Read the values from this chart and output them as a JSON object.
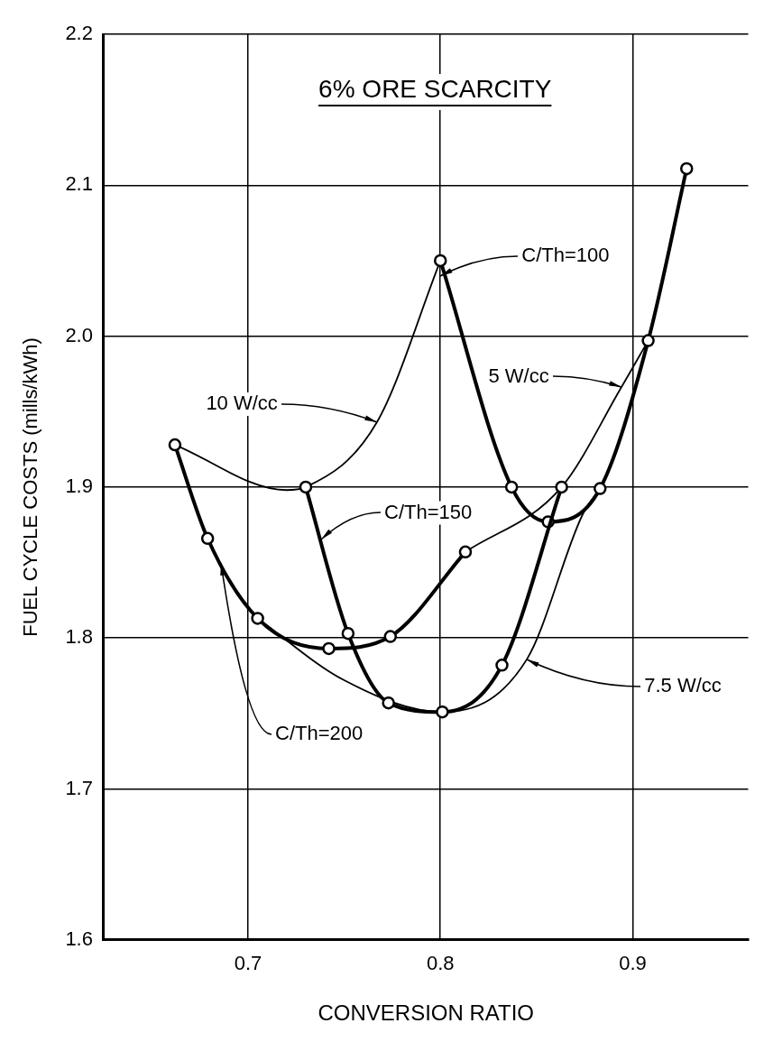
{
  "chart_data": {
    "type": "line",
    "title": "6% ORE SCARCITY",
    "xlabel": "CONVERSION RATIO",
    "ylabel": "FUEL CYCLE COSTS (mills/kWh)",
    "xlim": [
      0.625,
      0.96
    ],
    "xticks": [
      0.7,
      0.8,
      0.9
    ],
    "ylim": [
      1.6,
      2.2
    ],
    "yticks": [
      1.6,
      1.7,
      1.8,
      1.9,
      {
        "value": 2,
        "label": "2.0"
      },
      2.1,
      2.2
    ],
    "grid": true,
    "legend": false,
    "line_style": "solid",
    "series": [
      {
        "color": "#000000",
        "marker": "circle",
        "x": [
          0.662,
          0.679,
          0.705,
          0.742,
          0.774,
          0.813
        ],
        "values": [
          1.928,
          1.866,
          1.813,
          1.793,
          1.801,
          1.857
        ]
      },
      {
        "color": "#000000",
        "marker": "circle",
        "x": [
          0.73,
          0.752,
          0.773,
          0.801,
          0.832,
          0.863
        ],
        "values": [
          1.9,
          1.803,
          1.757,
          1.751,
          1.782,
          1.9
        ]
      },
      {
        "color": "#000000",
        "marker": "circle",
        "x": [
          0.8,
          0.837,
          0.856,
          0.883,
          0.908,
          0.928
        ],
        "values": [
          2.05,
          1.9,
          1.877,
          1.899,
          1.997,
          2.111
        ]
      },
      {
        "color": "#000000",
        "marker": "none",
        "x": [
          0.662,
          0.72,
          0.73,
          0.767,
          0.8
        ],
        "values": [
          1.928,
          1.898,
          1.9,
          1.943,
          2.05
        ]
      },
      {
        "color": "#000000",
        "marker": "none",
        "x": [
          0.705,
          0.75,
          0.801,
          0.845,
          0.874,
          0.883
        ],
        "values": [
          1.813,
          1.772,
          1.751,
          1.786,
          1.882,
          1.899
        ]
      },
      {
        "color": "#000000",
        "marker": "none",
        "x": [
          0.813,
          0.863,
          0.894,
          0.908
        ],
        "values": [
          1.857,
          1.9,
          1.966,
          1.997
        ]
      }
    ],
    "annotations": [
      {
        "text": "C/Th=100",
        "x": 0.8,
        "y": 2.04
      },
      {
        "text": "10 W/cc",
        "x": 0.767,
        "y": 1.943
      },
      {
        "text": "5 W/cc",
        "x": 0.894,
        "y": 1.966
      },
      {
        "text": "C/Th=150",
        "x": 0.738,
        "y": 1.865
      },
      {
        "text": "C/Th=200",
        "x": 0.686,
        "y": 1.85
      },
      {
        "text": "7.5 W/cc",
        "x": 0.845,
        "y": 1.786
      }
    ]
  }
}
